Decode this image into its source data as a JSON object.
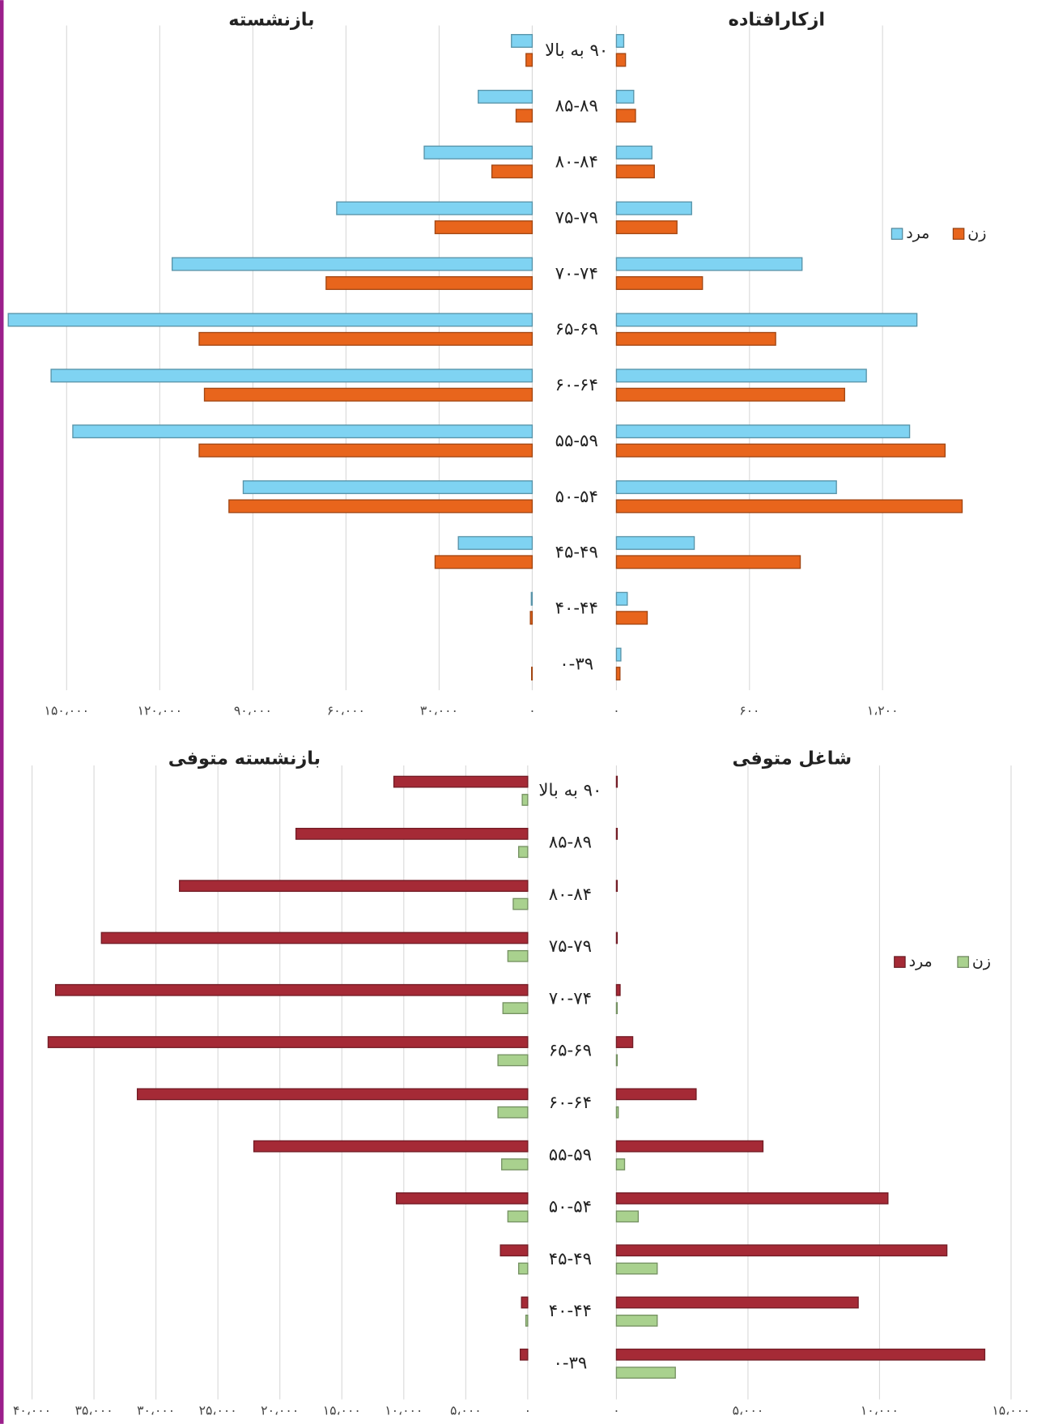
{
  "chart_data": [
    {
      "type": "bar",
      "orientation": "horizontal",
      "reversed": true,
      "title": "بازنشسته",
      "categories": [
        "۹۰ به بالا",
        "۸۵-۸۹",
        "۸۰-۸۴",
        "۷۵-۷۹",
        "۷۰-۷۴",
        "۶۵-۶۹",
        "۶۰-۶۴",
        "۵۵-۵۹",
        "۵۰-۵۴",
        "۴۵-۴۹",
        "۴۰-۴۴",
        "۰-۳۹"
      ],
      "series": [
        {
          "color": "#7fd3f2",
          "values": [
            6700,
            17400,
            34800,
            63000,
            116000,
            168800,
            155000,
            148000,
            93100,
            23800,
            300,
            0
          ]
        },
        {
          "color": "#e8651c",
          "values": [
            2000,
            5200,
            13000,
            31300,
            66400,
            107300,
            105600,
            107300,
            97700,
            31300,
            600,
            200
          ]
        }
      ],
      "xlim": [
        0,
        170000
      ],
      "xticks": [
        {
          "value": 0,
          "label": "۰"
        },
        {
          "value": 30000,
          "label": "۳۰،۰۰۰"
        },
        {
          "value": 60000,
          "label": "۶۰،۰۰۰"
        },
        {
          "value": 90000,
          "label": "۹۰،۰۰۰"
        },
        {
          "value": 120000,
          "label": "۱۲۰،۰۰۰"
        },
        {
          "value": 150000,
          "label": "۱۵۰،۰۰۰"
        }
      ],
      "grid": true
    },
    {
      "type": "bar",
      "orientation": "horizontal",
      "reversed": false,
      "title": "ازکارافتاده",
      "series": [
        {
          "name": "مرد",
          "color": "#7fd3f2",
          "values": [
            33,
            78,
            160,
            339,
            837,
            1355,
            1127,
            1322,
            992,
            351,
            49,
            20
          ]
        },
        {
          "name": "زن",
          "color": "#e8651c",
          "values": [
            41,
            86,
            171,
            273,
            388,
            718,
            1029,
            1482,
            1559,
            829,
            139,
            16
          ]
        }
      ],
      "xlim": [
        0,
        1800
      ],
      "xticks": [
        {
          "value": 0,
          "label": "۰"
        },
        {
          "value": 600,
          "label": "۶۰۰"
        },
        {
          "value": 1200,
          "label": "۱،۲۰۰"
        }
      ],
      "grid": true,
      "legend": "right"
    },
    {
      "type": "bar",
      "orientation": "horizontal",
      "reversed": true,
      "title": "بازنشسته متوفی",
      "categories": [
        "۹۰ به بالا",
        "۸۵-۸۹",
        "۸۰-۸۴",
        "۷۵-۷۹",
        "۷۰-۷۴",
        "۶۵-۶۹",
        "۶۰-۶۴",
        "۵۵-۵۹",
        "۵۰-۵۴",
        "۴۵-۴۹",
        "۴۰-۴۴",
        "۰-۳۹"
      ],
      "series": [
        {
          "color": "#a52a36",
          "values": [
            10800,
            18700,
            28100,
            34400,
            38100,
            38700,
            31500,
            22100,
            10600,
            2200,
            500,
            600
          ]
        },
        {
          "color": "#a9d18e",
          "values": [
            440,
            730,
            1170,
            1600,
            2000,
            2400,
            2400,
            2100,
            1600,
            730,
            150,
            0
          ]
        }
      ],
      "xlim": [
        0,
        42000
      ],
      "xticks": [
        {
          "value": 0,
          "label": "۰"
        },
        {
          "value": 5000,
          "label": "۵،۰۰۰"
        },
        {
          "value": 10000,
          "label": "۱۰،۰۰۰"
        },
        {
          "value": 15000,
          "label": "۱۵،۰۰۰"
        },
        {
          "value": 20000,
          "label": "۲۰،۰۰۰"
        },
        {
          "value": 25000,
          "label": "۲۵،۰۰۰"
        },
        {
          "value": 30000,
          "label": "۳۰،۰۰۰"
        },
        {
          "value": 35000,
          "label": "۳۵،۰۰۰"
        },
        {
          "value": 40000,
          "label": "۴۰،۰۰۰"
        }
      ],
      "grid": true
    },
    {
      "type": "bar",
      "orientation": "horizontal",
      "reversed": false,
      "title": "شاغل متوفی",
      "series": [
        {
          "name": "مرد",
          "color": "#a52a36",
          "values": [
            30,
            30,
            30,
            30,
            140,
            620,
            3030,
            5570,
            10320,
            12560,
            9190,
            14000
          ]
        },
        {
          "name": "زن",
          "color": "#a9d18e",
          "values": [
            0,
            0,
            0,
            0,
            30,
            30,
            70,
            310,
            830,
            1550,
            1550,
            2240
          ]
        }
      ],
      "xlim": [
        0,
        15000
      ],
      "xticks": [
        {
          "value": 0,
          "label": "۰"
        },
        {
          "value": 5000,
          "label": "۵،۰۰۰"
        },
        {
          "value": 10000,
          "label": "۱۰،۰۰۰"
        },
        {
          "value": 15000,
          "label": "۱۵،۰۰۰"
        }
      ],
      "grid": true,
      "legend": "right"
    }
  ]
}
